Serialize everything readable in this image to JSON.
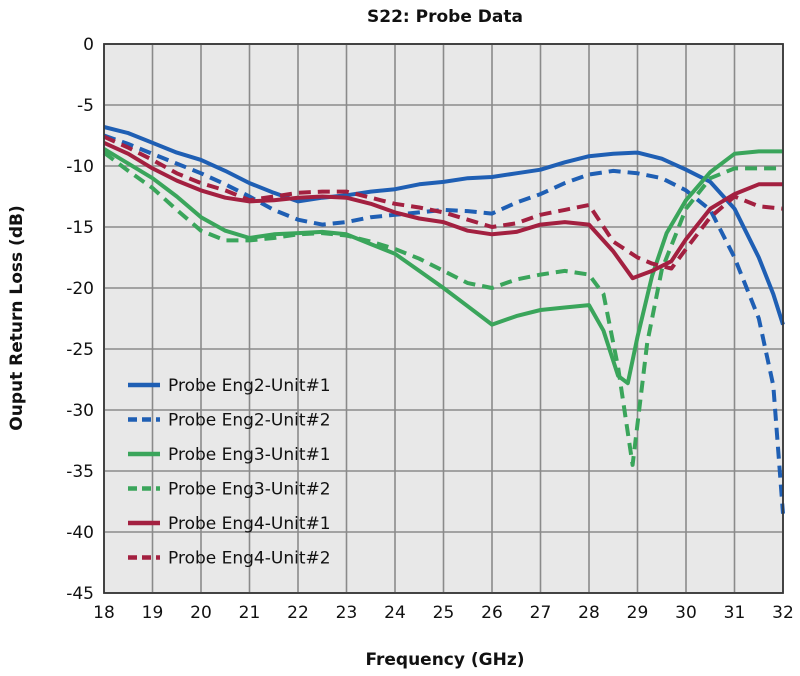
{
  "chart_data": {
    "type": "line",
    "title": "S22: Probe Data",
    "xlabel": "Frequency (GHz)",
    "ylabel": "Ouput Return Loss (dB)",
    "xlim": [
      18,
      32
    ],
    "ylim": [
      -45,
      0
    ],
    "xticks": [
      18,
      19,
      20,
      21,
      22,
      23,
      24,
      25,
      26,
      27,
      28,
      29,
      30,
      31,
      32
    ],
    "yticks": [
      0,
      -5,
      -10,
      -15,
      -20,
      -25,
      -30,
      -35,
      -40,
      -45
    ],
    "grid": true,
    "legend_position": "bottom-left",
    "series": [
      {
        "name": "Probe Eng2-Unit#1",
        "color": "#1f5fb4",
        "dash": false,
        "x": [
          18,
          18.5,
          19,
          19.5,
          20,
          20.5,
          21,
          21.5,
          22,
          22.5,
          23,
          23.5,
          24,
          24.5,
          25,
          25.5,
          26,
          26.5,
          27,
          27.5,
          28,
          28.5,
          29,
          29.5,
          30,
          30.5,
          31,
          31.5,
          31.8,
          32
        ],
        "y": [
          -6.8,
          -7.3,
          -8.1,
          -8.9,
          -9.5,
          -10.4,
          -11.4,
          -12.2,
          -12.9,
          -12.6,
          -12.4,
          -12.1,
          -11.9,
          -11.5,
          -11.3,
          -11.0,
          -10.9,
          -10.6,
          -10.3,
          -9.7,
          -9.2,
          -9.0,
          -8.9,
          -9.4,
          -10.3,
          -11.3,
          -13.5,
          -17.5,
          -20.5,
          -23.0
        ]
      },
      {
        "name": "Probe Eng2-Unit#2",
        "color": "#1f5fb4",
        "dash": true,
        "x": [
          18,
          18.5,
          19,
          19.5,
          20,
          20.5,
          21,
          21.5,
          22,
          22.5,
          23,
          23.5,
          24,
          24.5,
          25,
          25.5,
          26,
          26.5,
          27,
          27.5,
          28,
          28.5,
          29,
          29.5,
          30,
          30.5,
          31,
          31.5,
          31.8,
          32
        ],
        "y": [
          -7.5,
          -8.2,
          -9.0,
          -9.8,
          -10.6,
          -11.5,
          -12.5,
          -13.6,
          -14.4,
          -14.8,
          -14.6,
          -14.2,
          -14.0,
          -13.8,
          -13.6,
          -13.7,
          -13.9,
          -13.0,
          -12.3,
          -11.4,
          -10.7,
          -10.4,
          -10.6,
          -11.0,
          -12.0,
          -13.6,
          -17.5,
          -22.5,
          -28.0,
          -38.5
        ]
      },
      {
        "name": "Probe Eng3-Unit#1",
        "color": "#3aa55b",
        "dash": false,
        "x": [
          18,
          18.5,
          19,
          19.5,
          20,
          20.5,
          21,
          21.5,
          22,
          22.5,
          23,
          23.5,
          24,
          24.5,
          25,
          25.5,
          26,
          26.5,
          27,
          27.5,
          28,
          28.3,
          28.6,
          28.8,
          29,
          29.3,
          29.6,
          30,
          30.5,
          31,
          31.5,
          32
        ],
        "y": [
          -8.6,
          -9.8,
          -11.0,
          -12.5,
          -14.2,
          -15.3,
          -15.9,
          -15.6,
          -15.5,
          -15.4,
          -15.6,
          -16.4,
          -17.2,
          -18.6,
          -20.0,
          -21.5,
          -23.0,
          -22.3,
          -21.8,
          -21.6,
          -21.4,
          -23.5,
          -27.2,
          -27.8,
          -24.0,
          -19.0,
          -15.5,
          -12.8,
          -10.5,
          -9.0,
          -8.8,
          -8.8
        ]
      },
      {
        "name": "Probe Eng3-Unit#2",
        "color": "#3aa55b",
        "dash": true,
        "x": [
          18,
          18.5,
          19,
          19.5,
          20,
          20.5,
          21,
          21.5,
          22,
          22.5,
          23,
          23.5,
          24,
          24.5,
          25,
          25.5,
          26,
          26.5,
          27,
          27.5,
          28,
          28.3,
          28.6,
          28.9,
          29.2,
          29.5,
          30,
          30.5,
          31,
          31.5,
          32
        ],
        "y": [
          -8.9,
          -10.4,
          -11.8,
          -13.6,
          -15.3,
          -16.1,
          -16.1,
          -15.9,
          -15.6,
          -15.5,
          -15.7,
          -16.2,
          -16.8,
          -17.6,
          -18.6,
          -19.6,
          -20.0,
          -19.3,
          -18.9,
          -18.6,
          -18.9,
          -20.5,
          -26.5,
          -34.5,
          -24.5,
          -18.5,
          -13.5,
          -11.0,
          -10.2,
          -10.2,
          -10.2
        ]
      },
      {
        "name": "Probe Eng4-Unit#1",
        "color": "#a32040",
        "dash": false,
        "x": [
          18,
          18.5,
          19,
          19.5,
          20,
          20.5,
          21,
          21.5,
          22,
          22.5,
          23,
          23.5,
          24,
          24.5,
          25,
          25.5,
          26,
          26.5,
          27,
          27.5,
          28,
          28.5,
          28.9,
          29.3,
          29.7,
          30,
          30.5,
          31,
          31.5,
          32
        ],
        "y": [
          -8.1,
          -9.0,
          -10.2,
          -11.2,
          -12.0,
          -12.6,
          -12.9,
          -12.8,
          -12.6,
          -12.5,
          -12.6,
          -13.1,
          -13.8,
          -14.3,
          -14.6,
          -15.3,
          -15.6,
          -15.4,
          -14.8,
          -14.6,
          -14.8,
          -17.0,
          -19.2,
          -18.6,
          -17.8,
          -16.0,
          -13.5,
          -12.3,
          -11.5,
          -11.5
        ]
      },
      {
        "name": "Probe Eng4-Unit#2",
        "color": "#a32040",
        "dash": true,
        "x": [
          18,
          18.5,
          19,
          19.5,
          20,
          20.5,
          21,
          21.5,
          22,
          22.5,
          23,
          23.5,
          24,
          24.5,
          25,
          25.5,
          26,
          26.5,
          27,
          27.5,
          28,
          28.5,
          29,
          29.3,
          29.7,
          30,
          30.5,
          31,
          31.5,
          32
        ],
        "y": [
          -7.6,
          -8.5,
          -9.5,
          -10.6,
          -11.4,
          -12.0,
          -12.8,
          -12.5,
          -12.2,
          -12.1,
          -12.1,
          -12.6,
          -13.1,
          -13.4,
          -13.8,
          -14.4,
          -15.0,
          -14.7,
          -14.0,
          -13.6,
          -13.2,
          -16.2,
          -17.5,
          -18.0,
          -18.4,
          -16.8,
          -14.2,
          -12.5,
          -13.3,
          -13.5
        ]
      }
    ]
  }
}
